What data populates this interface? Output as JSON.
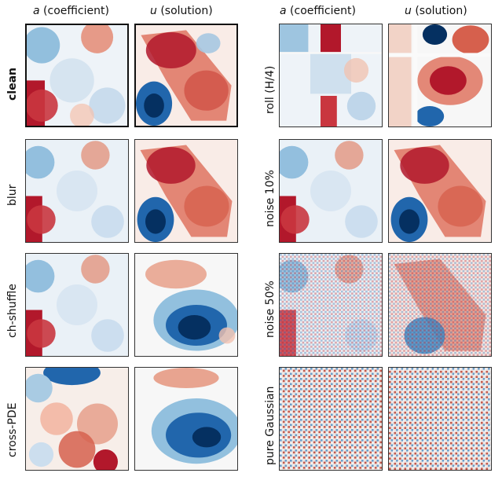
{
  "headers": {
    "left_a": {
      "var": "a",
      "text": " (coefficient)"
    },
    "left_u": {
      "var": "u",
      "text": " (solution)"
    },
    "right_a": {
      "var": "a",
      "text": " (coefficient)"
    },
    "right_u": {
      "var": "u",
      "text": " (solution)"
    }
  },
  "rows_left": [
    {
      "label": "clean",
      "bold": true
    },
    {
      "label": "blur",
      "bold": false
    },
    {
      "label": "ch-shuffle",
      "bold": false
    },
    {
      "label": "cross-PDE",
      "bold": false
    }
  ],
  "rows_right": [
    {
      "label": "roll (H/4)"
    },
    {
      "label": "noise 10%"
    },
    {
      "label": "noise 50%"
    },
    {
      "label": "pure Gaussian"
    }
  ],
  "colormap": {
    "red": "#b2182b",
    "white": "#f7f7f7",
    "blue": "#2166ac"
  }
}
